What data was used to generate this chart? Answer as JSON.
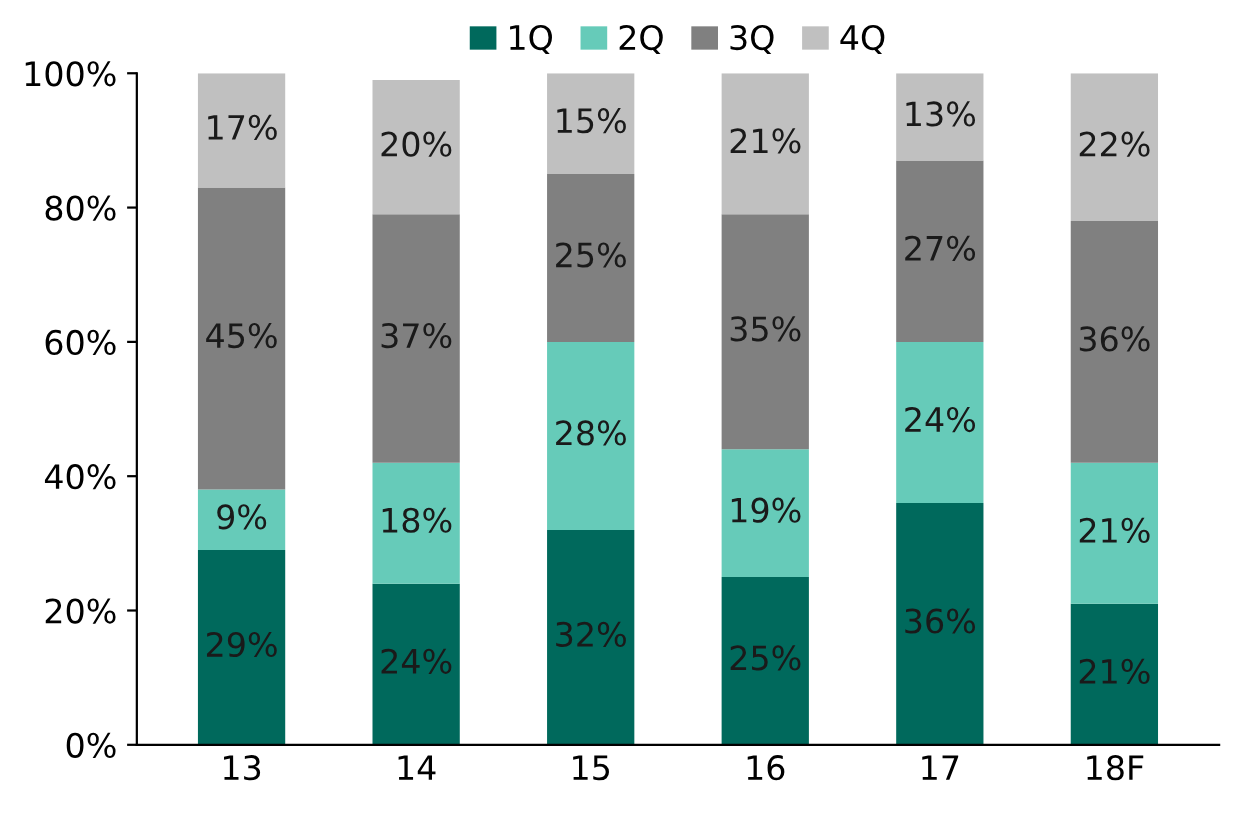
{
  "chart_data": {
    "type": "bar",
    "stacked": true,
    "categories": [
      "13",
      "14",
      "15",
      "16",
      "17",
      "18F"
    ],
    "series": [
      {
        "name": "1Q",
        "color": "#00695c",
        "values": [
          29,
          24,
          32,
          25,
          36,
          21
        ],
        "value_labels": [
          "29%",
          "24%",
          "32%",
          "25%",
          "36%",
          "21%"
        ]
      },
      {
        "name": "2Q",
        "color": "#66cbb9",
        "values": [
          9,
          18,
          28,
          19,
          24,
          21
        ],
        "value_labels": [
          "9%",
          "18%",
          "28%",
          "19%",
          "24%",
          "21%"
        ]
      },
      {
        "name": "3Q",
        "color": "#808080",
        "values": [
          45,
          37,
          25,
          35,
          27,
          36
        ],
        "value_labels": [
          "45%",
          "37%",
          "25%",
          "35%",
          "27%",
          "36%"
        ]
      },
      {
        "name": "4Q",
        "color": "#c0c0c0",
        "values": [
          17,
          20,
          15,
          21,
          13,
          22
        ],
        "value_labels": [
          "17%",
          "20%",
          "15%",
          "21%",
          "13%",
          "22%"
        ]
      }
    ],
    "ylim": [
      0,
      100
    ],
    "yticks": [
      {
        "value": 0,
        "label": "0%"
      },
      {
        "value": 20,
        "label": "20%"
      },
      {
        "value": 40,
        "label": "40%"
      },
      {
        "value": 60,
        "label": "60%"
      },
      {
        "value": 80,
        "label": "80%"
      },
      {
        "value": 100,
        "label": "100%"
      }
    ],
    "grid": false,
    "legend": "top"
  }
}
